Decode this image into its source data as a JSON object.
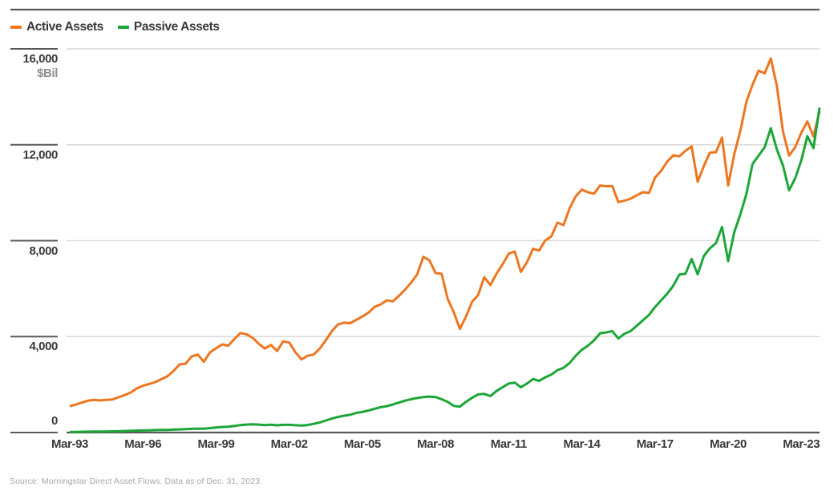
{
  "legend": {
    "items": [
      {
        "label": "Active Assets",
        "color": "#ED7621",
        "swatch": "active-series-swatch"
      },
      {
        "label": "Passive Assets",
        "color": "#1CA638",
        "swatch": "passive-series-swatch"
      }
    ]
  },
  "footer": {
    "source": "Source: Morningstar Direct Asset Flows. Data as of Dec. 31, 2023."
  },
  "colors": {
    "accent_orange": "#ED7621",
    "accent_green": "#1CA638",
    "dark_line": "#58585A",
    "gridline": "#D9D9D9",
    "text": "#3A3A3C",
    "muted_text": "#8F8F91",
    "footer_text": "#A7A7A9"
  },
  "chart_data": {
    "type": "line",
    "title": "",
    "xlabel": "",
    "ylabel": "",
    "ylabel_unit": "$Bil",
    "x_unit": "quarterly",
    "x_start": "Mar-1993",
    "x_end": "Dec-2023",
    "ylim": [
      0,
      16000
    ],
    "grid": "horizontal-only",
    "legend_position": "top-left",
    "y_ticks": [
      0,
      4000,
      8000,
      12000,
      16000
    ],
    "y_tick_labels": [
      "0",
      "4,000",
      "8,000",
      "12,000",
      "16,000"
    ],
    "x_tick_labels": [
      "Mar-93",
      "Mar-96",
      "Mar-99",
      "Mar-02",
      "Mar-05",
      "Mar-08",
      "Mar-11",
      "Mar-14",
      "Mar-17",
      "Mar-20",
      "Mar-23"
    ],
    "x_tick_quarter_index": [
      0,
      12,
      24,
      36,
      48,
      60,
      72,
      84,
      96,
      108,
      120
    ],
    "series": [
      {
        "name": "Active Assets",
        "color": "#ED7621",
        "values": [
          1100,
          1170,
          1250,
          1330,
          1360,
          1340,
          1360,
          1380,
          1470,
          1560,
          1670,
          1840,
          1950,
          2020,
          2100,
          2220,
          2340,
          2560,
          2840,
          2870,
          3175,
          3250,
          2950,
          3340,
          3510,
          3675,
          3620,
          3900,
          4150,
          4100,
          3950,
          3700,
          3500,
          3650,
          3400,
          3800,
          3750,
          3350,
          3050,
          3200,
          3250,
          3500,
          3850,
          4230,
          4510,
          4580,
          4560,
          4700,
          4840,
          5000,
          5240,
          5340,
          5510,
          5470,
          5700,
          5960,
          6250,
          6600,
          7330,
          7180,
          6650,
          6620,
          5570,
          5010,
          4320,
          4840,
          5450,
          5740,
          6480,
          6150,
          6620,
          7010,
          7460,
          7550,
          6700,
          7100,
          7660,
          7590,
          8010,
          8180,
          8750,
          8650,
          9350,
          9850,
          10130,
          10020,
          9960,
          10300,
          10270,
          10280,
          9610,
          9670,
          9750,
          9890,
          10020,
          9990,
          10630,
          10910,
          11300,
          11560,
          11520,
          11750,
          11930,
          10460,
          11110,
          11670,
          11690,
          12300,
          10300,
          11600,
          12580,
          13800,
          14500,
          15090,
          14980,
          15600,
          14450,
          12550,
          11550,
          11900,
          12500,
          12970,
          12350,
          13400
        ]
      },
      {
        "name": "Passive Assets",
        "color": "#1CA638",
        "values": [
          25,
          28,
          32,
          37,
          40,
          42,
          45,
          50,
          55,
          62,
          70,
          80,
          88,
          95,
          103,
          110,
          110,
          120,
          130,
          140,
          155,
          165,
          160,
          185,
          210,
          230,
          245,
          275,
          310,
          330,
          340,
          330,
          310,
          325,
          300,
          320,
          320,
          305,
          290,
          310,
          360,
          420,
          500,
          580,
          650,
          700,
          740,
          820,
          860,
          920,
          990,
          1060,
          1100,
          1170,
          1250,
          1330,
          1390,
          1440,
          1480,
          1500,
          1480,
          1390,
          1280,
          1110,
          1080,
          1280,
          1450,
          1590,
          1610,
          1520,
          1730,
          1890,
          2040,
          2080,
          1890,
          2040,
          2230,
          2150,
          2300,
          2420,
          2600,
          2700,
          2900,
          3200,
          3450,
          3620,
          3840,
          4140,
          4175,
          4230,
          3920,
          4120,
          4230,
          4450,
          4675,
          4900,
          5230,
          5510,
          5790,
          6120,
          6590,
          6620,
          7240,
          6600,
          7355,
          7680,
          7900,
          8570,
          7150,
          8350,
          9100,
          9950,
          11200,
          11550,
          11900,
          12690,
          11800,
          11130,
          10100,
          10600,
          11350,
          12360,
          11860,
          13550
        ]
      }
    ]
  }
}
